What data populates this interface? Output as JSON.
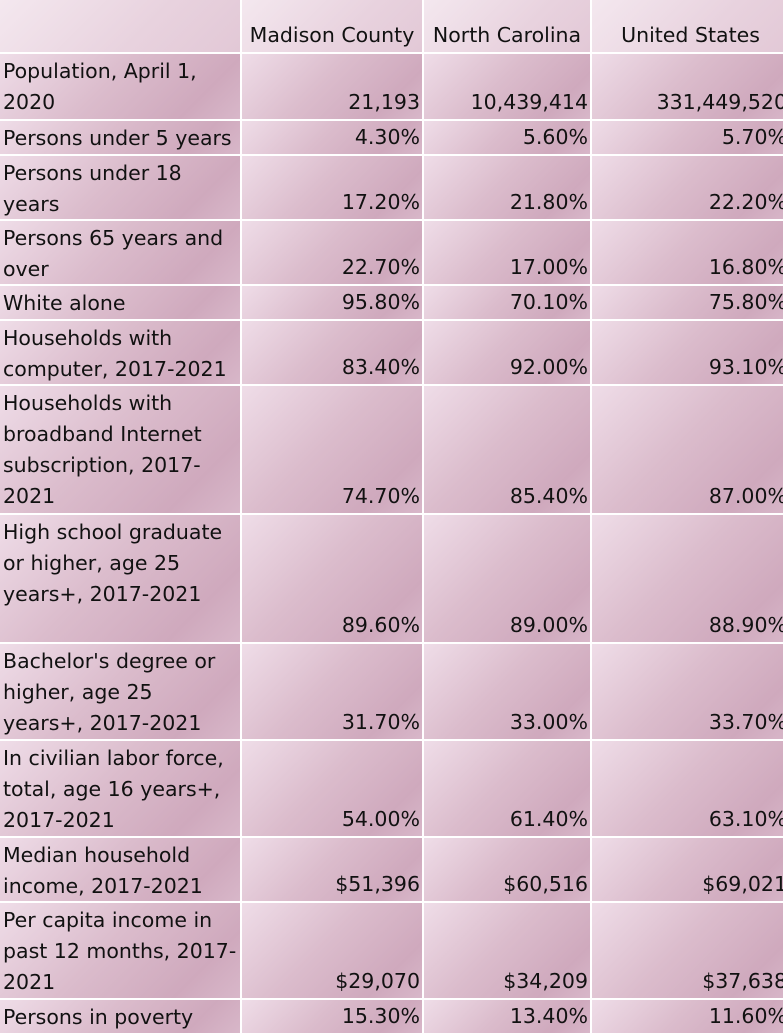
{
  "table": {
    "columns": [
      "",
      "Madison County",
      "North Carolina",
      "United States"
    ],
    "rows": [
      {
        "label": "Population, April 1, 2020",
        "madison": "21,193",
        "nc": "10,439,414",
        "us": "331,449,520"
      },
      {
        "label": "Persons under 5 years",
        "madison": "4.30%",
        "nc": "5.60%",
        "us": "5.70%"
      },
      {
        "label": "Persons under 18 years",
        "madison": "17.20%",
        "nc": "21.80%",
        "us": "22.20%"
      },
      {
        "label": "Persons 65 years and over",
        "madison": "22.70%",
        "nc": "17.00%",
        "us": "16.80%"
      },
      {
        "label": "White alone",
        "madison": "95.80%",
        "nc": "70.10%",
        "us": "75.80%"
      },
      {
        "label": "Households with computer,  2017-2021",
        "madison": "83.40%",
        "nc": "92.00%",
        "us": "93.10%"
      },
      {
        "label": "Households with broadband Internet subscription, 2017-2021",
        "madison": "74.70%",
        "nc": "85.40%",
        "us": "87.00%"
      },
      {
        "label": "High school graduate or higher, age 25 years+, 2017-2021",
        "madison": "89.60%",
        "nc": "89.00%",
        "us": "88.90%"
      },
      {
        "label": "Bachelor's degree or higher, age 25 years+, 2017-2021",
        "madison": "31.70%",
        "nc": "33.00%",
        "us": "33.70%"
      },
      {
        "label": "In civilian labor force, total,  age 16 years+, 2017-2021",
        "madison": "54.00%",
        "nc": "61.40%",
        "us": "63.10%"
      },
      {
        "label": "Median household income, 2017-2021",
        "madison": "$51,396",
        "nc": "$60,516",
        "us": "$69,021"
      },
      {
        "label": "Per capita income in past 12 months, 2017-2021",
        "madison": "$29,070",
        "nc": "$34,209",
        "us": "$37,638"
      },
      {
        "label": "Persons in poverty",
        "madison": "15.30%",
        "nc": "13.40%",
        "us": "11.60%"
      }
    ]
  },
  "colors": {
    "cell_light": "#efdde8",
    "cell_mid": "#dbbccc",
    "cell_dark": "#cfa9bd",
    "header_light": "#f4e8ef",
    "text": "#111111",
    "gridline": "#ffffff"
  }
}
